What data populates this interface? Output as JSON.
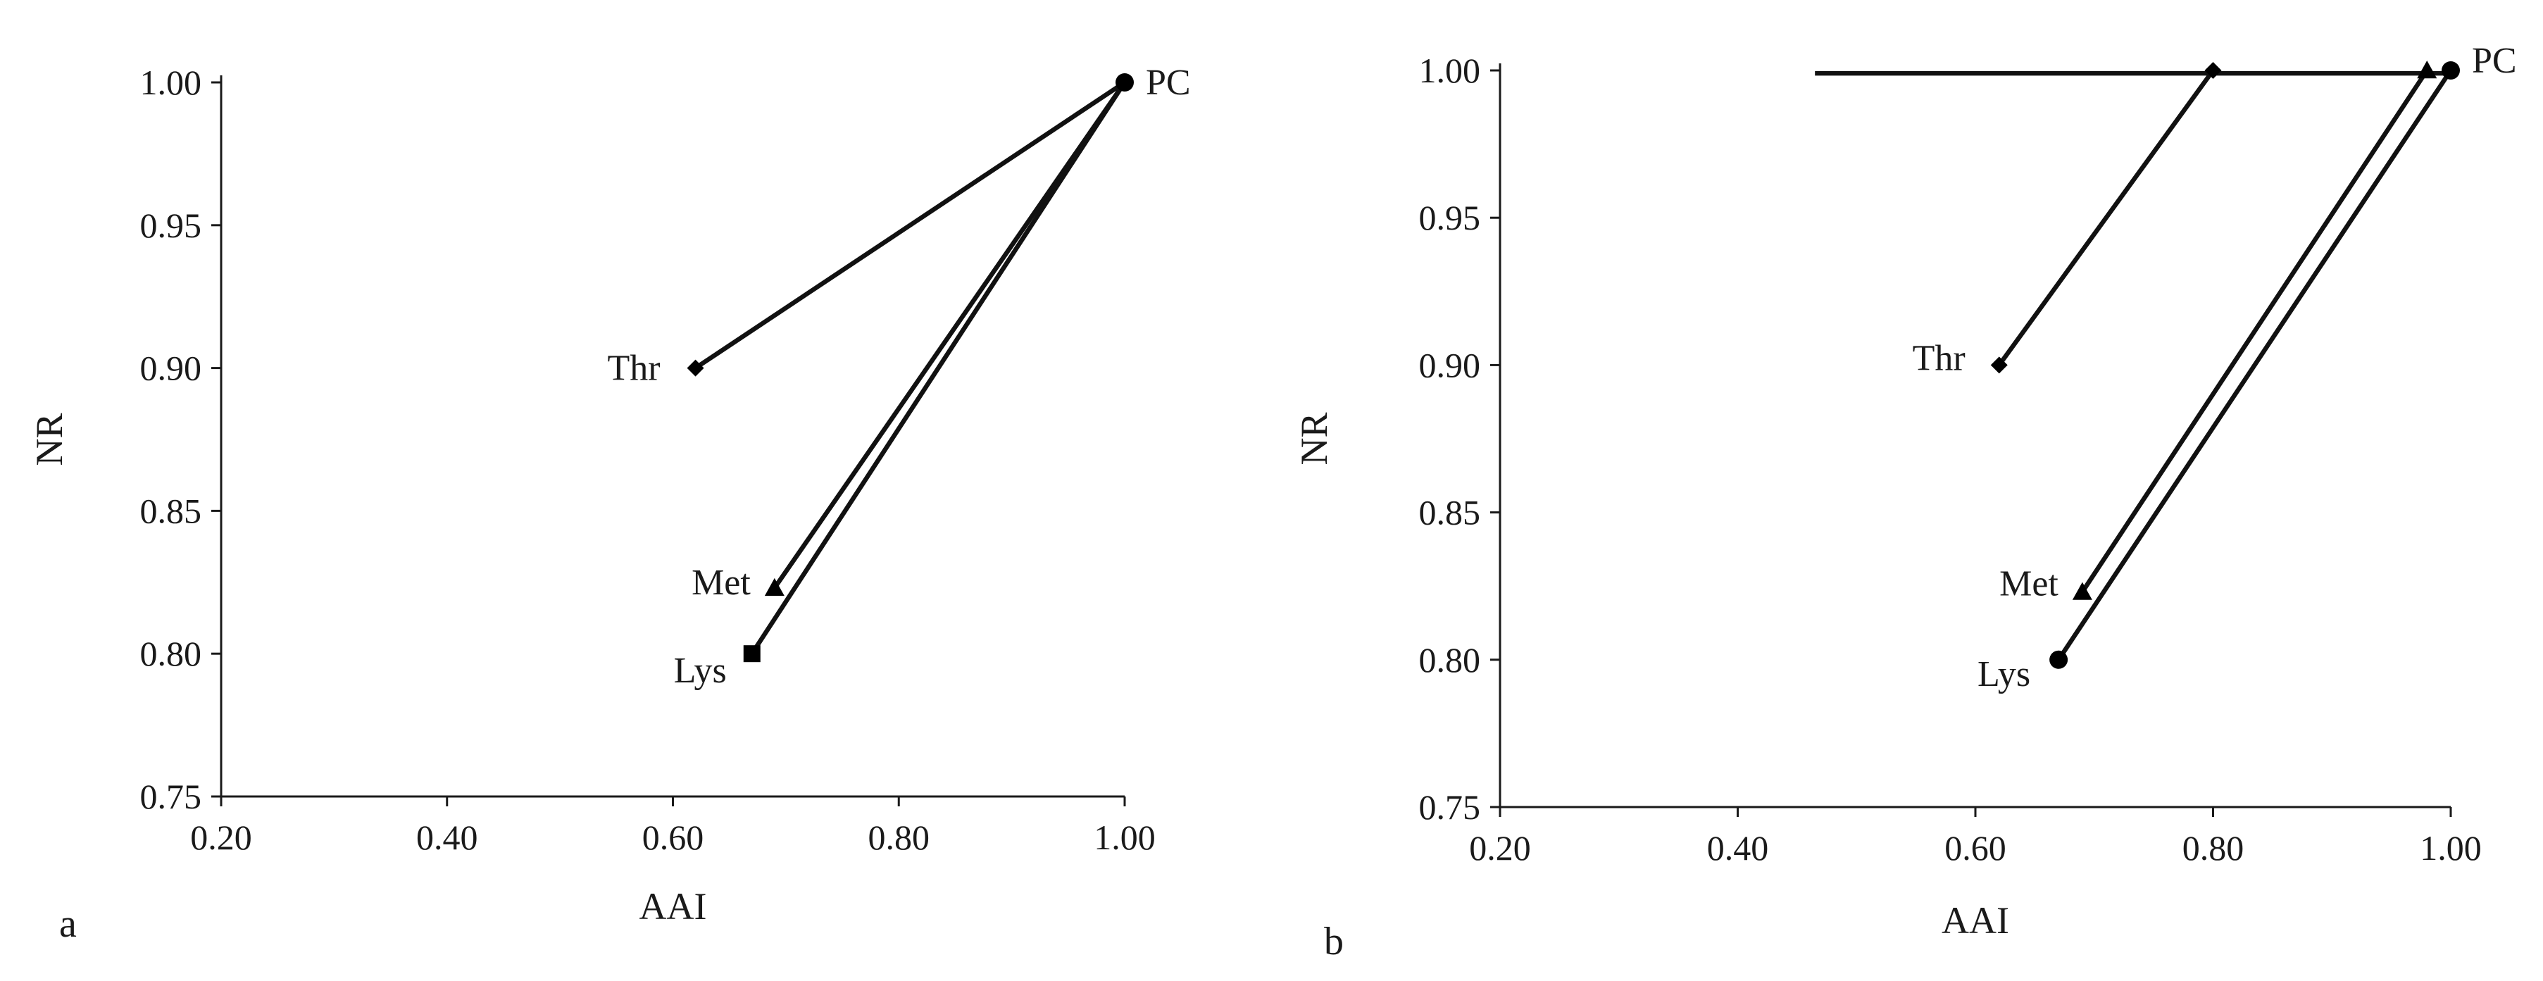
{
  "chart_data": [
    {
      "type": "line",
      "panel_label": "a",
      "xlabel": "AAI",
      "ylabel": "NR",
      "xlim": [
        0.2,
        1.0
      ],
      "ylim": [
        0.75,
        1.0
      ],
      "x_ticks": [
        "0.20",
        "0.40",
        "0.60",
        "0.80",
        "1.00"
      ],
      "y_ticks": [
        "0.75",
        "0.80",
        "0.85",
        "0.90",
        "0.95",
        "1.00"
      ],
      "grid": false,
      "series": [
        {
          "name": "Thr",
          "marker": "diamond",
          "points": [
            {
              "x": 0.62,
              "y": 0.9
            },
            {
              "x": 1.0,
              "y": 1.0
            }
          ]
        },
        {
          "name": "Met",
          "marker": "triangle",
          "points": [
            {
              "x": 0.69,
              "y": 0.823
            },
            {
              "x": 1.0,
              "y": 1.0
            }
          ]
        },
        {
          "name": "Lys",
          "marker": "square",
          "points": [
            {
              "x": 0.67,
              "y": 0.8
            },
            {
              "x": 1.0,
              "y": 1.0
            }
          ]
        }
      ],
      "reference_point": {
        "name": "PC",
        "marker": "circle",
        "x": 1.0,
        "y": 1.0
      }
    },
    {
      "type": "line",
      "panel_label": "b",
      "xlabel": "AAI",
      "ylabel": "NR",
      "xlim": [
        0.2,
        1.0
      ],
      "ylim": [
        0.75,
        1.0
      ],
      "x_ticks": [
        "0.20",
        "0.40",
        "0.60",
        "0.80",
        "1.00"
      ],
      "y_ticks": [
        "0.75",
        "0.80",
        "0.85",
        "0.90",
        "0.95",
        "1.00"
      ],
      "grid": false,
      "series": [
        {
          "name": "Thr",
          "marker": "diamond",
          "points": [
            {
              "x": 0.62,
              "y": 0.9
            },
            {
              "x": 0.8,
              "y": 1.0
            }
          ]
        },
        {
          "name": "Met",
          "marker": "triangle",
          "points": [
            {
              "x": 0.69,
              "y": 0.823
            },
            {
              "x": 0.98,
              "y": 1.0
            }
          ]
        },
        {
          "name": "Lys",
          "marker": "circle",
          "points": [
            {
              "x": 0.67,
              "y": 0.8
            },
            {
              "x": 1.0,
              "y": 1.0
            }
          ]
        },
        {
          "name": "",
          "marker": "none",
          "points": [
            {
              "x": 0.465,
              "y": 0.999
            },
            {
              "x": 1.0,
              "y": 0.999
            }
          ]
        }
      ],
      "reference_point": {
        "name": "PC",
        "marker": "circle",
        "x": 1.0,
        "y": 1.0
      }
    }
  ]
}
